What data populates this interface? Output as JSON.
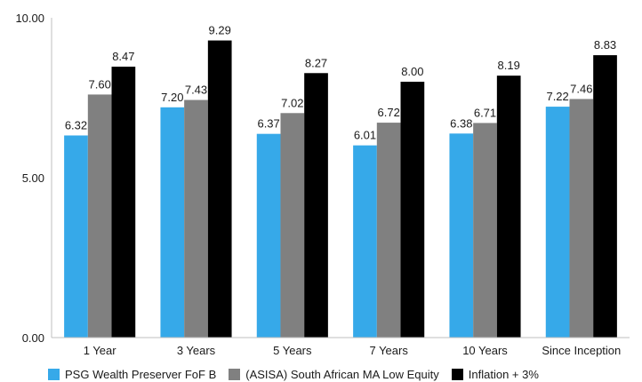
{
  "chart_data": {
    "type": "bar",
    "categories": [
      "1 Year",
      "3 Years",
      "5 Years",
      "7 Years",
      "10 Years",
      "Since Inception"
    ],
    "series": [
      {
        "name": "PSG Wealth Preserver FoF B",
        "color": "#36a9e9",
        "values": [
          6.32,
          7.2,
          6.37,
          6.01,
          6.38,
          7.22
        ]
      },
      {
        "name": "(ASISA) South African MA Low Equity",
        "color": "#808080",
        "values": [
          7.6,
          7.43,
          7.02,
          6.72,
          6.71,
          7.46
        ]
      },
      {
        "name": "Inflation + 3%",
        "color": "#000000",
        "values": [
          8.47,
          9.29,
          8.27,
          8.0,
          8.19,
          8.83
        ]
      }
    ],
    "y_ticks": [
      "0.00",
      "5.00",
      "10.00"
    ],
    "ylim": [
      0,
      10
    ],
    "grid": false,
    "legend_position": "bottom",
    "data_labels": true,
    "title": "",
    "xlabel": "",
    "ylabel": ""
  }
}
